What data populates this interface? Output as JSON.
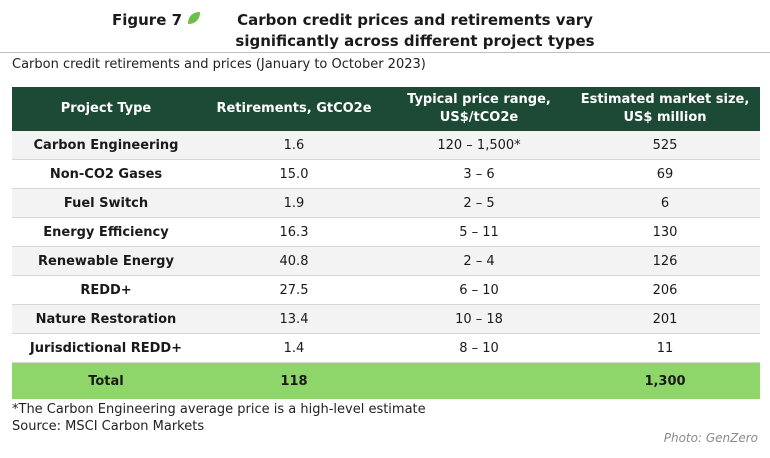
{
  "figure": {
    "label": "Figure 7",
    "title": "Carbon credit prices and retirements vary significantly across different project types",
    "subtitle": "Carbon credit retirements and prices (January to October 2023)",
    "leaf_color": "#6cc04a"
  },
  "table": {
    "headers": [
      "Project Type",
      "Retirements, GtCO2e",
      "Typical price range, US$/tCO2e",
      "Estimated market size, US$ million"
    ],
    "rows": [
      [
        "Carbon Engineering",
        "1.6",
        "120 – 1,500*",
        "525"
      ],
      [
        "Non-CO2 Gases",
        "15.0",
        "3 – 6",
        "69"
      ],
      [
        "Fuel Switch",
        "1.9",
        "2 – 5",
        "6"
      ],
      [
        "Energy Efficiency",
        "16.3",
        "5 – 11",
        "130"
      ],
      [
        "Renewable Energy",
        "40.8",
        "2 – 4",
        "126"
      ],
      [
        "REDD+",
        "27.5",
        "6 – 10",
        "206"
      ],
      [
        "Nature Restoration",
        "13.4",
        "10 – 18",
        "201"
      ],
      [
        "Jurisdictional REDD+",
        "1.4",
        "8 – 10",
        "11"
      ]
    ],
    "total": [
      "Total",
      "118",
      "",
      "1,300"
    ],
    "header_color": "#1c4a35",
    "total_color": "#8fd66a"
  },
  "footnote": "*The Carbon Engineering average price is a high-level estimate",
  "source": "Source: MSCI Carbon Markets",
  "credit": "Photo: GenZero"
}
